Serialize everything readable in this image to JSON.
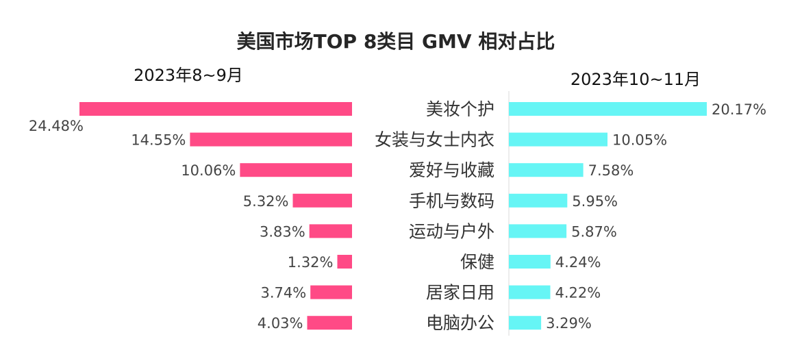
{
  "chart_data": {
    "type": "bar",
    "title": "美国市场TOP 8类目 GMV 相对占比",
    "categories": [
      "美妆个护",
      "女装与女士内衣",
      "爱好与收藏",
      "手机与数码",
      "运动与户外",
      "保健",
      "居家日用",
      "电脑办公"
    ],
    "series": [
      {
        "name": "2023年8~9月",
        "values": [
          24.48,
          14.55,
          10.06,
          5.32,
          3.83,
          1.32,
          3.74,
          4.03
        ],
        "labels": [
          "24.48%",
          "14.55%",
          "10.06%",
          "5.32%",
          "3.83%",
          "1.32%",
          "3.74%",
          "4.03%"
        ],
        "color": "#ff4a86"
      },
      {
        "name": "2023年10~11月",
        "values": [
          20.17,
          10.05,
          7.58,
          5.95,
          5.87,
          4.24,
          4.22,
          3.29
        ],
        "labels": [
          "20.17%",
          "10.05%",
          "7.58%",
          "5.95%",
          "5.87%",
          "4.24%",
          "4.22%",
          "3.29%"
        ],
        "color": "#66f5f5"
      }
    ],
    "orientation": "horizontal-butterfly",
    "grid": false,
    "divider_color": "#d9d9d9"
  }
}
